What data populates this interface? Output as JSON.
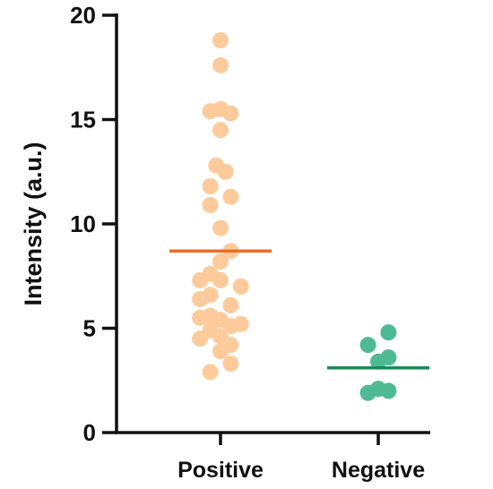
{
  "chart_data": {
    "type": "scatter",
    "ylabel": "Intensity (a.u.)",
    "ylim": [
      0,
      20
    ],
    "y_ticks": [
      0,
      5,
      10,
      15,
      20
    ],
    "y_tick_labels": [
      "0",
      "5",
      "10",
      "15",
      "20"
    ],
    "categories": [
      "Positive",
      "Negative"
    ],
    "grid": false,
    "series": [
      {
        "category": "Positive",
        "color": "#FDCB9B",
        "mean_color": "#F36A21",
        "mean": 8.7,
        "points": [
          {
            "x_offset": 0.0,
            "y": 18.8
          },
          {
            "x_offset": 0.0,
            "y": 17.6
          },
          {
            "x_offset": -0.6,
            "y": 15.4
          },
          {
            "x_offset": 0.0,
            "y": 15.5
          },
          {
            "x_offset": 0.6,
            "y": 15.3
          },
          {
            "x_offset": 0.0,
            "y": 14.5
          },
          {
            "x_offset": -0.25,
            "y": 12.8
          },
          {
            "x_offset": 0.3,
            "y": 12.5
          },
          {
            "x_offset": -0.6,
            "y": 11.8
          },
          {
            "x_offset": 0.6,
            "y": 11.3
          },
          {
            "x_offset": -0.6,
            "y": 10.9
          },
          {
            "x_offset": 0.0,
            "y": 9.8
          },
          {
            "x_offset": 0.6,
            "y": 8.7
          },
          {
            "x_offset": 0.0,
            "y": 8.2
          },
          {
            "x_offset": -0.6,
            "y": 7.6
          },
          {
            "x_offset": -1.2,
            "y": 7.3
          },
          {
            "x_offset": 0.0,
            "y": 7.3
          },
          {
            "x_offset": 1.2,
            "y": 7.0
          },
          {
            "x_offset": -0.6,
            "y": 6.6
          },
          {
            "x_offset": -1.2,
            "y": 6.4
          },
          {
            "x_offset": 0.6,
            "y": 6.1
          },
          {
            "x_offset": -1.2,
            "y": 5.5
          },
          {
            "x_offset": -0.6,
            "y": 5.6
          },
          {
            "x_offset": 0.0,
            "y": 5.4
          },
          {
            "x_offset": 0.6,
            "y": 5.1
          },
          {
            "x_offset": 1.2,
            "y": 5.2
          },
          {
            "x_offset": -0.6,
            "y": 4.9
          },
          {
            "x_offset": -1.2,
            "y": 4.5
          },
          {
            "x_offset": 0.0,
            "y": 4.6
          },
          {
            "x_offset": 0.6,
            "y": 4.2
          },
          {
            "x_offset": 0.0,
            "y": 3.9
          },
          {
            "x_offset": 0.6,
            "y": 3.3
          },
          {
            "x_offset": -0.6,
            "y": 2.9
          }
        ]
      },
      {
        "category": "Negative",
        "color": "#4DBA94",
        "mean_color": "#1A8A58",
        "mean": 3.1,
        "points": [
          {
            "x_offset": -0.6,
            "y": 4.2
          },
          {
            "x_offset": 0.6,
            "y": 4.8
          },
          {
            "x_offset": 0.6,
            "y": 3.6
          },
          {
            "x_offset": 0.0,
            "y": 3.4
          },
          {
            "x_offset": -0.6,
            "y": 1.9
          },
          {
            "x_offset": 0.0,
            "y": 2.1
          },
          {
            "x_offset": 0.6,
            "y": 2.0
          }
        ]
      }
    ]
  }
}
